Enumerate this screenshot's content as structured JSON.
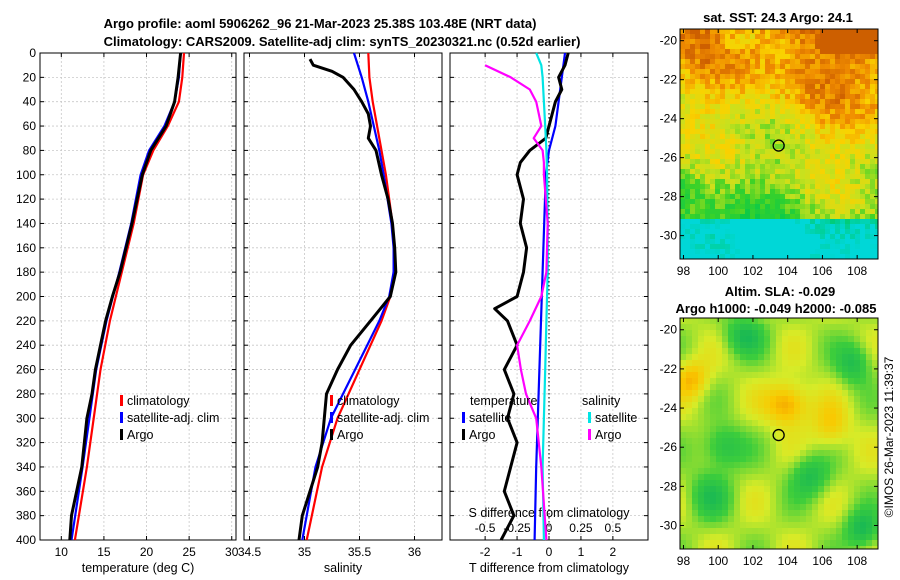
{
  "titles": {
    "line1": "Argo profile: aoml 5906262_96 21-Mar-2023 25.38S 103.48E (NRT data)",
    "line2": "Climatology: CARS2009. Satellite-adj clim: synTS_20230321.nc (0.52d earlier)",
    "sst": "sat. SST: 24.3 Argo: 24.1",
    "sla1": "Altim. SLA: -0.029",
    "sla2": "Argo h1000: -0.049 h2000: -0.085"
  },
  "watermark": "©IMOS 26-Mar-2023 11:39:37",
  "colors": {
    "clim": "#ff0000",
    "sat": "#0000ff",
    "argo": "#000000",
    "sat_s": "#00e5e5",
    "argo_s": "#ff00ff"
  },
  "chart_data": [
    {
      "type": "line",
      "name": "temperature",
      "xlabel": "temperature (deg C)",
      "xlim": [
        7.5,
        30.5
      ],
      "ylim": [
        0,
        400
      ],
      "xticks": [
        10,
        15,
        20,
        25,
        30
      ],
      "yticks": [
        0,
        20,
        40,
        60,
        80,
        100,
        120,
        140,
        160,
        180,
        200,
        220,
        240,
        260,
        280,
        300,
        320,
        340,
        360,
        380,
        400
      ],
      "legend": [
        "climatology",
        "satellite-adj. clim",
        "Argo"
      ],
      "series": [
        {
          "name": "climatology",
          "depth": [
            0,
            20,
            40,
            60,
            80,
            100,
            140,
            180,
            220,
            260,
            300,
            340,
            400
          ],
          "values": [
            24.4,
            24.2,
            23.8,
            22.5,
            20.8,
            19.6,
            18.5,
            17.1,
            15.7,
            14.6,
            13.8,
            13.0,
            11.6
          ]
        },
        {
          "name": "satellite-adj. clim",
          "depth": [
            0,
            20,
            40,
            60,
            80,
            100,
            140,
            180,
            220,
            260,
            300,
            340,
            400
          ],
          "values": [
            24.0,
            23.8,
            23.3,
            22.1,
            20.3,
            19.3,
            18.2,
            16.8,
            15.3,
            14.1,
            13.3,
            12.5,
            11.2
          ]
        },
        {
          "name": "Argo",
          "depth": [
            0,
            20,
            40,
            60,
            80,
            100,
            140,
            180,
            200,
            220,
            240,
            260,
            280,
            300,
            340,
            380,
            400
          ],
          "values": [
            24.0,
            23.7,
            23.3,
            22.3,
            20.5,
            19.5,
            18.3,
            16.9,
            16.0,
            15.2,
            14.6,
            14.0,
            13.6,
            13.0,
            12.4,
            11.2,
            11.0
          ]
        }
      ]
    },
    {
      "type": "line",
      "name": "salinity",
      "xlabel": "salinity",
      "xlim": [
        34.45,
        36.25
      ],
      "ylim": [
        0,
        400
      ],
      "xticks": [
        34.5,
        35,
        35.5,
        36
      ],
      "legend": [
        "climatology",
        "satellite-adj. clim",
        "Argo"
      ],
      "series": [
        {
          "name": "climatology",
          "depth": [
            0,
            20,
            40,
            60,
            80,
            100,
            140,
            160,
            180,
            200,
            220,
            260,
            300,
            340,
            400
          ],
          "values": [
            35.58,
            35.59,
            35.62,
            35.66,
            35.7,
            35.74,
            35.8,
            35.82,
            35.82,
            35.78,
            35.7,
            35.5,
            35.3,
            35.16,
            35.02
          ]
        },
        {
          "name": "satellite-adj. clim",
          "depth": [
            0,
            20,
            40,
            60,
            80,
            100,
            140,
            160,
            180,
            200,
            220,
            260,
            300,
            340,
            400
          ],
          "values": [
            35.45,
            35.52,
            35.58,
            35.63,
            35.68,
            35.72,
            35.79,
            35.81,
            35.81,
            35.77,
            35.68,
            35.46,
            35.24,
            35.1,
            34.98
          ]
        },
        {
          "name": "Argo",
          "depth": [
            5,
            10,
            15,
            20,
            30,
            40,
            50,
            60,
            70,
            80,
            100,
            120,
            140,
            160,
            180,
            200,
            220,
            240,
            260,
            280,
            300,
            320,
            340,
            360,
            380,
            400
          ],
          "values": [
            35.05,
            35.08,
            35.25,
            35.35,
            35.45,
            35.52,
            35.58,
            35.6,
            35.58,
            35.65,
            35.7,
            35.76,
            35.8,
            35.82,
            35.83,
            35.78,
            35.6,
            35.42,
            35.3,
            35.2,
            35.18,
            35.16,
            35.12,
            35.05,
            34.98,
            34.95
          ]
        }
      ]
    },
    {
      "type": "line",
      "name": "difference",
      "xlabel": "T difference from climatology",
      "xlabel_top": "S difference from climatology",
      "xlim": [
        -3.1,
        3.1
      ],
      "ylim": [
        0,
        400
      ],
      "xticks": [
        -2,
        -1,
        0,
        1,
        2
      ],
      "xticks_s": [
        -0.5,
        -0.25,
        0,
        0.25,
        0.5
      ],
      "xticks_s_labels": [
        "-0.5",
        "-0.25",
        "0",
        "0.25",
        "0.5"
      ],
      "legend_t_title": "temperature",
      "legend_s_title": "salinity",
      "legend_t": [
        "satellite",
        "Argo"
      ],
      "legend_s": [
        "satellite",
        "Argo"
      ],
      "series": [
        {
          "name": "T satellite",
          "depth": [
            0,
            20,
            40,
            60,
            80,
            100,
            140,
            180,
            220,
            260,
            300,
            340,
            400
          ],
          "values": [
            0.5,
            0.4,
            0.3,
            0.2,
            0.0,
            -0.1,
            -0.15,
            -0.2,
            -0.25,
            -0.3,
            -0.35,
            -0.4,
            -0.45
          ]
        },
        {
          "name": "T Argo",
          "depth": [
            0,
            10,
            20,
            30,
            40,
            50,
            60,
            70,
            80,
            90,
            100,
            120,
            140,
            160,
            180,
            200,
            210,
            220,
            240,
            260,
            280,
            300,
            320,
            340,
            360,
            380,
            400
          ],
          "values": [
            0.6,
            0.5,
            0.3,
            0.4,
            0.2,
            0.1,
            0.0,
            -0.1,
            -0.6,
            -0.9,
            -1.0,
            -0.8,
            -0.9,
            -0.7,
            -0.8,
            -1.0,
            -1.7,
            -1.3,
            -1.0,
            -1.4,
            -1.1,
            -1.3,
            -1.0,
            -1.2,
            -1.4,
            -1.1,
            -1.5
          ]
        },
        {
          "name": "S satellite",
          "depth": [
            0,
            10,
            20,
            40,
            60,
            80,
            100,
            140,
            180,
            220,
            260,
            300,
            340,
            400
          ],
          "values": [
            -0.1,
            -0.06,
            -0.05,
            -0.04,
            -0.03,
            -0.02,
            -0.015,
            -0.01,
            -0.01,
            -0.02,
            -0.03,
            -0.04,
            -0.05,
            -0.04
          ]
        },
        {
          "name": "S Argo",
          "depth": [
            10,
            20,
            30,
            40,
            50,
            60,
            70,
            80,
            90,
            100,
            140,
            180,
            200,
            220,
            240,
            260,
            280,
            300,
            340,
            400
          ],
          "values": [
            -0.5,
            -0.3,
            -0.15,
            -0.1,
            -0.08,
            -0.06,
            -0.12,
            -0.05,
            -0.04,
            -0.04,
            -0.01,
            -0.02,
            -0.06,
            -0.15,
            -0.25,
            -0.22,
            -0.18,
            -0.1,
            -0.06,
            -0.02
          ]
        }
      ]
    },
    {
      "type": "heatmap",
      "name": "sst-map",
      "title": "sat. SST: 24.3 Argo: 24.1",
      "xlim": [
        97.8,
        109.2
      ],
      "ylim": [
        -31.2,
        -19.4
      ],
      "xticks": [
        98,
        100,
        102,
        104,
        106,
        108
      ],
      "yticks": [
        -20,
        -22,
        -24,
        -26,
        -28,
        -30
      ],
      "marker": {
        "lon": 103.48,
        "lat": -25.38
      }
    },
    {
      "type": "heatmap",
      "name": "sla-map",
      "title": "Altim. SLA: -0.029",
      "xlim": [
        97.8,
        109.2
      ],
      "ylim": [
        -31.2,
        -19.4
      ],
      "xticks": [
        98,
        100,
        102,
        104,
        106,
        108
      ],
      "yticks": [
        -20,
        -22,
        -24,
        -26,
        -28,
        -30
      ],
      "marker": {
        "lon": 103.48,
        "lat": -25.38
      }
    }
  ]
}
